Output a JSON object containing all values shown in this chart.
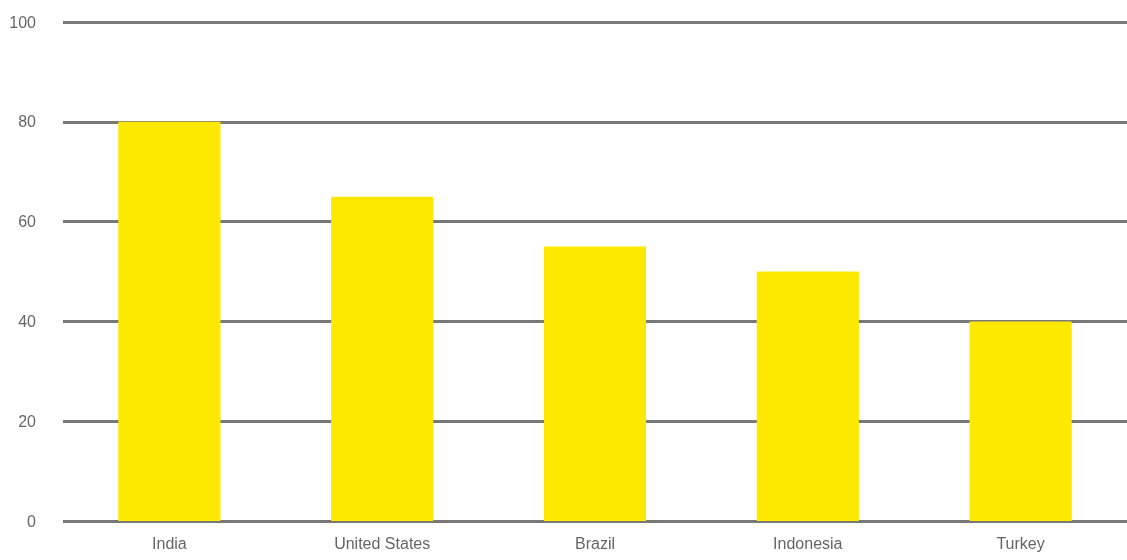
{
  "chart_data": {
    "type": "bar",
    "categories": [
      "India",
      "United States",
      "Brazil",
      "Indonesia",
      "Turkey"
    ],
    "values": [
      80,
      65,
      55,
      50,
      40
    ],
    "color": "#fde900",
    "ylim": [
      0,
      100
    ],
    "yticks": [
      0,
      20,
      40,
      60,
      80,
      100
    ],
    "grid": "y"
  }
}
